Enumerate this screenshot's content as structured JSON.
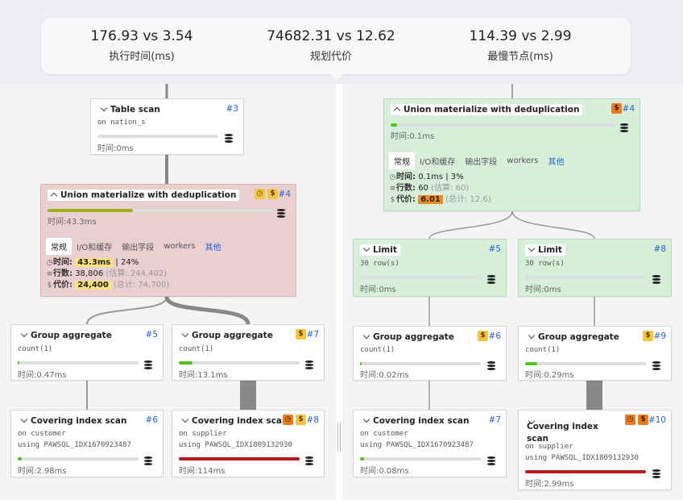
{
  "summary": {
    "exec": {
      "value": "176.93 vs 3.54",
      "label": "执行时间(ms)"
    },
    "cost": {
      "value": "74682.31 vs 12.62",
      "label": "规划代价"
    },
    "slowest": {
      "value": "114.39 vs 2.99",
      "label": "最慢节点(ms)"
    }
  },
  "tabs": [
    "常规",
    "I/O和缓存",
    "输出字段",
    "workers",
    "其他"
  ],
  "left": {
    "table_scan": {
      "title": "Table scan",
      "id": "#3",
      "sub": "on nation_s",
      "time": "时间:0ms"
    },
    "union": {
      "title": "Union materialize with deduplication",
      "id": "#4",
      "time": "时间:43.3ms",
      "d_time_k": "时间:",
      "d_time_v": "43.3ms",
      "d_time_p": "| 24%",
      "d_rows_k": "行数:",
      "d_rows_v": "38,806",
      "d_rows_est": "(估算: 244,402)",
      "d_cost_k": "代价:",
      "d_cost_v": "24,400",
      "d_cost_tot": "(总计: 74,700)"
    },
    "ga1": {
      "title": "Group aggregate",
      "id": "#5",
      "sub": "count(1)",
      "time": "时间:0.47ms"
    },
    "ga2": {
      "title": "Group aggregate",
      "id": "#7",
      "sub": "count(1)",
      "time": "时间:13.1ms"
    },
    "cis1": {
      "title": "Covering index scan",
      "id": "#6",
      "sub1": "on customer",
      "sub2": "using PAWSQL_IDX1670923487",
      "time": "时间:2.98ms"
    },
    "cis2": {
      "title": "Covering index scan",
      "id": "#8",
      "sub1": "on supplier",
      "sub2": "using PAWSQL_IDX1809132930",
      "time": "时间:114ms"
    }
  },
  "right": {
    "union": {
      "title": "Union materialize with deduplication",
      "id": "#4",
      "time": "时间:0.1ms",
      "d_time_k": "时间:",
      "d_time_v": "0.1ms",
      "d_time_p": "| 3%",
      "d_rows_k": "行数:",
      "d_rows_v": "60",
      "d_rows_est": "(估算: 60)",
      "d_cost_k": "代价:",
      "d_cost_v": "6.01",
      "d_cost_tot": "(总计: 12.6)"
    },
    "limit1": {
      "title": "Limit",
      "id": "#5",
      "sub": "30 row(s)",
      "time": "时间:0ms"
    },
    "limit2": {
      "title": "Limit",
      "id": "#8",
      "sub": "30 row(s)",
      "time": "时间:0ms"
    },
    "ga1": {
      "title": "Group aggregate",
      "id": "#6",
      "sub": "count(1)",
      "time": "时间:0.02ms"
    },
    "ga2": {
      "title": "Group aggregate",
      "id": "#9",
      "sub": "count(1)",
      "time": "时间:0.29ms"
    },
    "cis1": {
      "title": "Covering index scan",
      "id": "#7",
      "sub1": "on customer",
      "sub2": "using PAWSQL_IDX1670923487",
      "time": "时间:0.08ms"
    },
    "cis2": {
      "title": "Covering index scan",
      "id": "#10",
      "sub1": "on supplier",
      "sub2": "using PAWSQL_IDX1809132930",
      "time": "时间:2.99ms"
    }
  },
  "colors": {
    "time_bar_green": "#52c41a",
    "time_bar_olive": "#a0b020",
    "time_bar_red": "#b91c1c",
    "node_red": "#e9cfcf",
    "node_green": "#d7efd9",
    "link": "#2a62c9"
  },
  "icons": {
    "dollar": "dollar-badge-icon",
    "clock": "clock-badge-icon",
    "database": "database-icon",
    "chevron": "chevron-down-icon"
  }
}
